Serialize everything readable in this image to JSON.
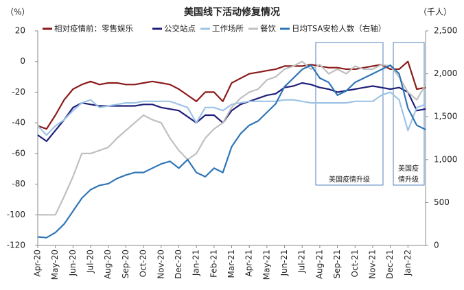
{
  "chart_data": {
    "type": "line",
    "title": "美国线下活动修复情况",
    "y_unit": "（%）",
    "y2_unit": "（千人）",
    "categories": [
      "Apr-20",
      null,
      "May-20",
      null,
      "Jun-20",
      null,
      "Jul-20",
      null,
      "Aug-20",
      null,
      "Sep-20",
      null,
      "Oct-20",
      null,
      "Nov-20",
      null,
      "Dec-20",
      null,
      "Jan-21",
      null,
      "Feb-21",
      null,
      "Mar-21",
      null,
      "Apr-21",
      null,
      "May-21",
      null,
      "Jun-21",
      null,
      "Jul-21",
      null,
      "Aug-21",
      null,
      "Sep-21",
      null,
      "Oct-21",
      null,
      "Nov-21",
      null,
      "Dec-21",
      null,
      "Jan-22",
      null,
      null
    ],
    "series": [
      {
        "name": "相对疫情前：零售娱乐",
        "color": "#8b1a1a",
        "values": [
          -42,
          -44,
          -35,
          -25,
          -18,
          -15,
          -13,
          -15,
          -14,
          -14,
          -15,
          -15,
          -14,
          -13,
          -14,
          -15,
          -18,
          -22,
          -26,
          -20,
          -20,
          -26,
          -14,
          -11,
          -8,
          -7,
          -6,
          -5,
          -3,
          -3,
          -3,
          -2,
          -3,
          -4,
          -4,
          -5,
          -5,
          -4,
          -3,
          -2,
          -5,
          -5,
          0,
          -18,
          -17
        ]
      },
      {
        "name": "公交站点",
        "color": "#1f1f7a",
        "values": [
          -48,
          -52,
          -45,
          -38,
          -30,
          -27,
          -28,
          -29,
          -29,
          -29,
          -29,
          -29,
          -28,
          -28,
          -30,
          -31,
          -32,
          -36,
          -40,
          -35,
          -35,
          -40,
          -32,
          -28,
          -26,
          -24,
          -22,
          -21,
          -17,
          -16,
          -14,
          -15,
          -17,
          -18,
          -20,
          -19,
          -18,
          -17,
          -16,
          -17,
          -18,
          -17,
          -20,
          -32,
          -31
        ]
      },
      {
        "name": "工作场所",
        "color": "#9dc3e6",
        "values": [
          -42,
          -48,
          -42,
          -38,
          -32,
          -27,
          -25,
          -30,
          -29,
          -28,
          -27,
          -27,
          -26,
          -26,
          -26,
          -26,
          -28,
          -30,
          -40,
          -30,
          -30,
          -32,
          -28,
          -27,
          -26,
          -26,
          -26,
          -26,
          -25,
          -25,
          -26,
          -27,
          -27,
          -27,
          -27,
          -27,
          -26,
          -26,
          -26,
          -22,
          -20,
          -25,
          -45,
          -30,
          -28
        ]
      },
      {
        "name": "餐饮",
        "color": "#bfbfbf",
        "values": [
          -100,
          -100,
          -100,
          -88,
          -75,
          -60,
          -60,
          -58,
          -56,
          -50,
          -45,
          -40,
          -35,
          -38,
          -40,
          -50,
          -58,
          -64,
          -60,
          -50,
          -44,
          -40,
          -30,
          -24,
          -20,
          -18,
          -12,
          -10,
          -5,
          -3,
          0,
          -5,
          -2,
          -8,
          -5,
          -8,
          -3,
          -5,
          -5,
          -2,
          -3,
          -10,
          -20,
          -25,
          -15
        ]
      },
      {
        "name": "日均TSA安检人数（右轴）",
        "color": "#2e75b6",
        "axis": "y2",
        "values": [
          100,
          90,
          150,
          250,
          400,
          550,
          650,
          700,
          720,
          780,
          820,
          850,
          850,
          900,
          950,
          980,
          900,
          1000,
          850,
          800,
          900,
          850,
          1150,
          1300,
          1400,
          1450,
          1550,
          1650,
          1850,
          1950,
          2050,
          2100,
          1950,
          1900,
          1750,
          1800,
          1900,
          1950,
          2000,
          2050,
          2100,
          2000,
          1600,
          1400,
          1350
        ]
      }
    ],
    "ylim": [
      -120,
      20
    ],
    "yticks": [
      -120,
      -100,
      -80,
      -60,
      -40,
      -20,
      0,
      20
    ],
    "y2lim": [
      0,
      2500
    ],
    "y2ticks": [
      0,
      500,
      {
        "value": 1000,
        "label": "1,000"
      },
      {
        "value": 1500,
        "label": "1,500"
      },
      {
        "value": 2000,
        "label": "2,000"
      },
      {
        "value": 2500,
        "label": "2,500"
      }
    ],
    "annotations": [
      {
        "text": "美国疫情升级"
      },
      {
        "text": "美国疫"
      },
      {
        "text": "情升级"
      }
    ]
  }
}
